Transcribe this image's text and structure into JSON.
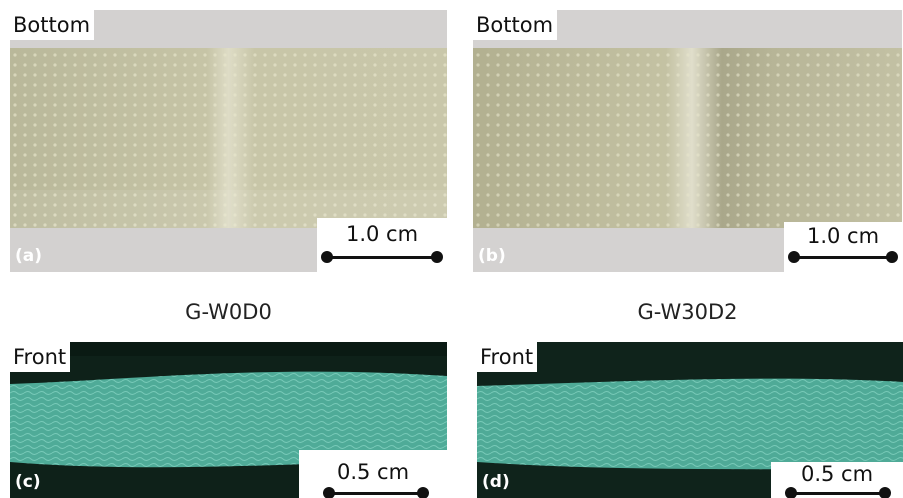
{
  "panels": {
    "a": {
      "view_label": "Bottom",
      "letter": "(a)",
      "scale_label": "1.0 cm"
    },
    "b": {
      "view_label": "Bottom",
      "letter": "(b)",
      "scale_label": "1.0 cm"
    },
    "c": {
      "view_label": "Front",
      "letter": "(c)",
      "scale_label": "0.5 cm"
    },
    "d": {
      "view_label": "Front",
      "letter": "(d)",
      "scale_label": "0.5 cm"
    }
  },
  "captions": {
    "left": "G-W0D0",
    "right": "G-W30D2"
  },
  "colors": {
    "photo_background": "#d2d0cf",
    "laminate_strip": "#c9c8a8",
    "cross_section_dark": "#10241c",
    "cross_section_fibers": "#62c4b0"
  }
}
